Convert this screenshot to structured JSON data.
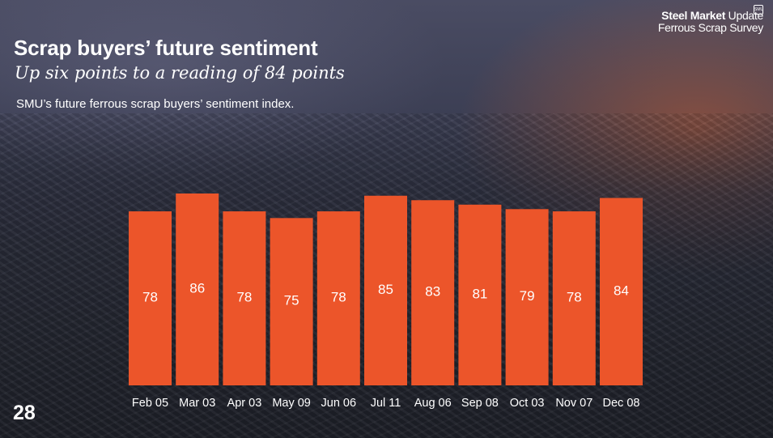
{
  "logo": {
    "line1_bold": "Steel Market",
    "line1_rest": " Update",
    "line2": "Ferrous Scrap Survey",
    "badge": "SMU"
  },
  "slide": {
    "title": "Scrap buyers’ future sentiment",
    "subtitle": "Up six points to a reading of 84 points",
    "description": "SMU’s future ferrous scrap buyers’ sentiment index.",
    "page_number": "28"
  },
  "colors": {
    "bar": "#ec552a",
    "text": "#ffffff"
  },
  "chart_data": {
    "type": "bar",
    "title": "",
    "xlabel": "",
    "ylabel": "",
    "categories": [
      "Feb 05",
      "Mar 03",
      "Apr 03",
      "May 09",
      "Jun 06",
      "Jul 11",
      "Aug 06",
      "Sep 08",
      "Oct 03",
      "Nov 07",
      "Dec 08"
    ],
    "values": [
      78,
      86,
      78,
      75,
      78,
      85,
      83,
      81,
      79,
      78,
      84
    ],
    "ylim": [
      0,
      86
    ],
    "grid": false,
    "legend": "none"
  }
}
